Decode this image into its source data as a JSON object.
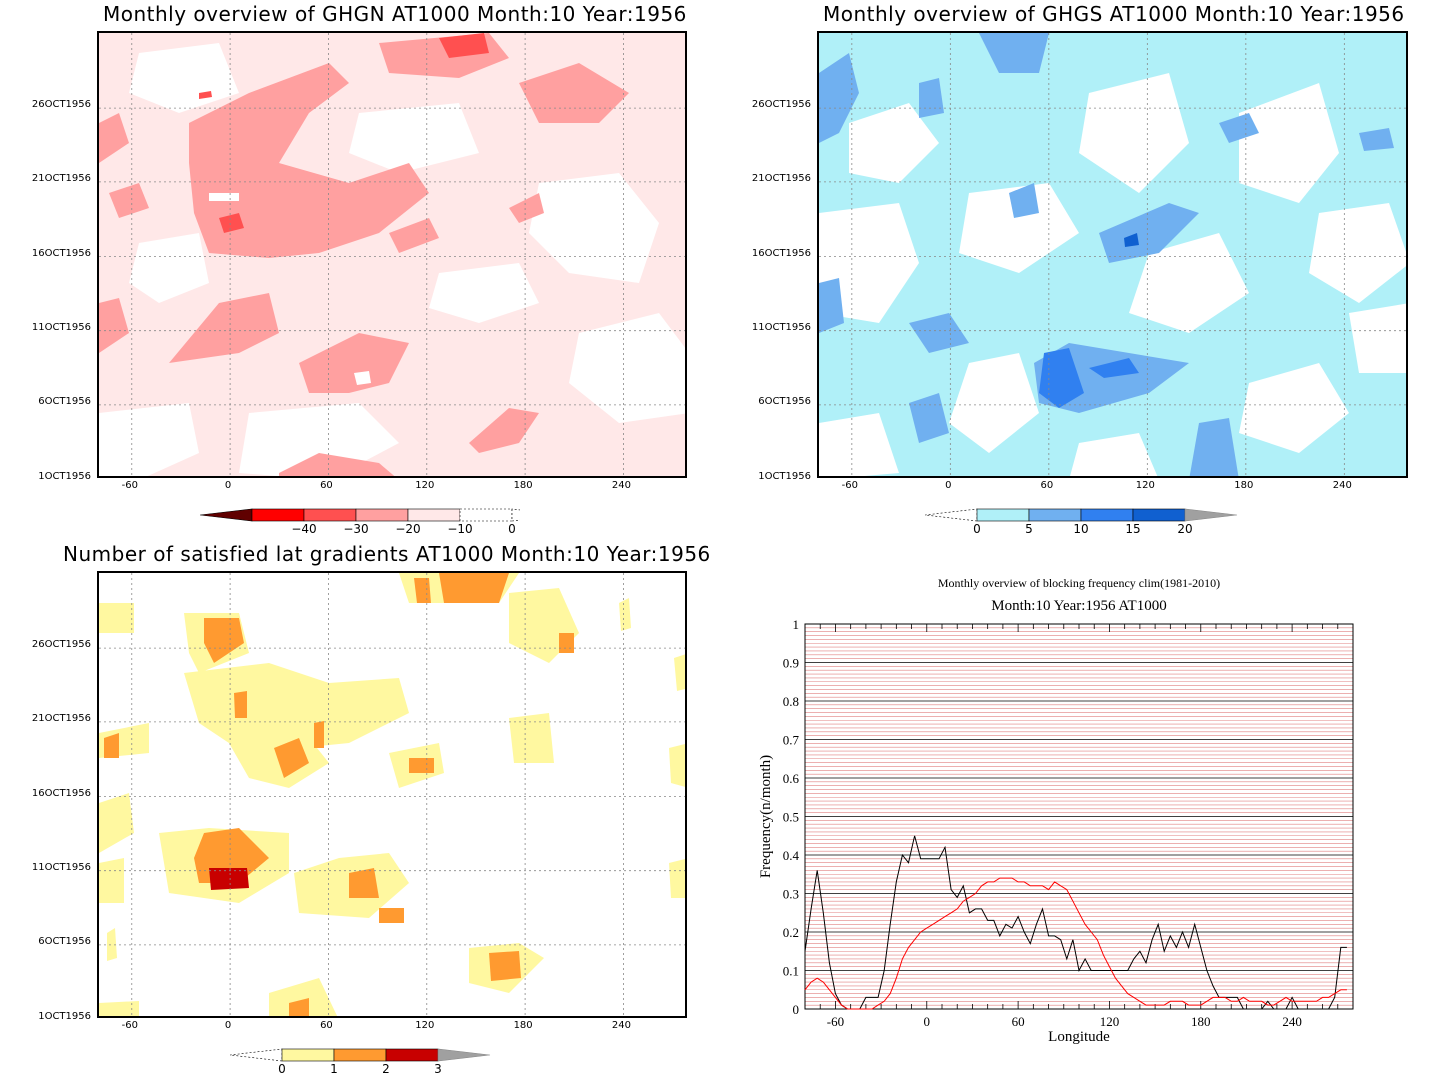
{
  "panels": {
    "ghgn": {
      "title": "Monthly overview of GHGN AT1000 Month:10 Year:1956",
      "colorbar": {
        "labels": [
          "−40",
          "−30",
          "−20",
          "−10",
          "0"
        ],
        "colors": [
          "#600000",
          "#ff0000",
          "#ff5050",
          "#ffa0a0",
          "#ffe8e8"
        ]
      }
    },
    "ghgs": {
      "title": "Monthly overview of GHGS AT1000 Month:10 Year:1956",
      "colorbar": {
        "labels": [
          "0",
          "5",
          "10",
          "15",
          "20"
        ],
        "colors": [
          "#b0f0f8",
          "#70b0f0",
          "#3080f0",
          "#1060d0",
          "#a0a0a0"
        ]
      }
    },
    "lat": {
      "title": "Number of satisfied lat gradients AT1000 Month:10 Year:1956",
      "colorbar": {
        "labels": [
          "0",
          "1",
          "2",
          "3"
        ],
        "colors": [
          "#fff8a0",
          "#ff9a30",
          "#c80000",
          "#a0a0a0"
        ]
      }
    },
    "freq": {
      "title": "Monthly overview of blocking frequency clim(1981-2010)",
      "subtitle": "Month:10 Year:1956  AT1000"
    }
  },
  "map_axes": {
    "y_ticks": [
      "26OCT1956",
      "21OCT1956",
      "16OCT1956",
      "11OCT1956",
      "6OCT1956",
      "1OCT1956"
    ],
    "x_ticks": [
      "-60",
      "0",
      "60",
      "120",
      "180",
      "240"
    ]
  },
  "chart_data": {
    "type": "line",
    "title": "Monthly overview of blocking frequency clim(1981-2010)",
    "subtitle": "Month:10 Year:1956  AT1000",
    "xlabel": "Longitude",
    "ylabel": "Frequency(n/month)",
    "xlim": [
      -80,
      280
    ],
    "ylim": [
      0,
      1
    ],
    "x_ticks": [
      -60,
      0,
      60,
      120,
      180,
      240
    ],
    "y_ticks": [
      0,
      0.1,
      0.2,
      0.3,
      0.4,
      0.5,
      0.6,
      0.7,
      0.8,
      0.9,
      1
    ],
    "y_tick_labels": [
      "0",
      "0.1",
      "0.2",
      "0.3",
      "0.4",
      "0.5",
      "0.6",
      "0.7",
      "0.8",
      "0.9",
      "1"
    ],
    "x_tick_labels": [
      "-60",
      "0",
      "60",
      "120",
      "180",
      "240"
    ],
    "series": [
      {
        "color": "#000000",
        "x": [
          -80,
          -76,
          -72,
          -68,
          -64,
          -60,
          -56,
          -52,
          -48,
          -44,
          -40,
          -36,
          -32,
          -28,
          -24,
          -20,
          -16,
          -12,
          -8,
          -4,
          0,
          4,
          8,
          12,
          16,
          20,
          24,
          28,
          32,
          36,
          40,
          44,
          48,
          52,
          56,
          60,
          64,
          68,
          72,
          76,
          80,
          84,
          88,
          92,
          96,
          100,
          104,
          108,
          112,
          116,
          120,
          124,
          128,
          132,
          136,
          140,
          144,
          148,
          152,
          156,
          160,
          164,
          168,
          172,
          176,
          180,
          184,
          188,
          192,
          196,
          200,
          204,
          208,
          212,
          216,
          220,
          224,
          228,
          232,
          236,
          240,
          244,
          248,
          252,
          256,
          260,
          264,
          268,
          272,
          276
        ],
        "y": [
          0.15,
          0.26,
          0.36,
          0.25,
          0.12,
          0.04,
          0.01,
          0.0,
          0.0,
          0.0,
          0.03,
          0.03,
          0.03,
          0.1,
          0.22,
          0.33,
          0.4,
          0.38,
          0.45,
          0.39,
          0.39,
          0.39,
          0.39,
          0.42,
          0.31,
          0.29,
          0.32,
          0.25,
          0.26,
          0.26,
          0.23,
          0.23,
          0.19,
          0.22,
          0.21,
          0.24,
          0.2,
          0.17,
          0.22,
          0.26,
          0.19,
          0.19,
          0.18,
          0.13,
          0.18,
          0.1,
          0.13,
          0.1,
          0.1,
          0.1,
          0.1,
          0.1,
          0.1,
          0.1,
          0.13,
          0.15,
          0.12,
          0.18,
          0.22,
          0.15,
          0.19,
          0.16,
          0.2,
          0.16,
          0.22,
          0.16,
          0.1,
          0.06,
          0.03,
          0.03,
          0.03,
          0.03,
          0.0,
          0.0,
          0.0,
          0.0,
          0.02,
          0.0,
          0.0,
          0.0,
          0.03,
          0.0,
          0.0,
          0.0,
          0.0,
          0.0,
          0.0,
          0.03,
          0.16,
          0.16
        ]
      },
      {
        "color": "#ff0000",
        "x": [
          -80,
          -76,
          -72,
          -68,
          -64,
          -60,
          -56,
          -52,
          -48,
          -44,
          -40,
          -36,
          -32,
          -28,
          -24,
          -20,
          -16,
          -12,
          -8,
          -4,
          0,
          4,
          8,
          12,
          16,
          20,
          24,
          28,
          32,
          36,
          40,
          44,
          48,
          52,
          56,
          60,
          64,
          68,
          72,
          76,
          80,
          84,
          88,
          92,
          96,
          100,
          104,
          108,
          112,
          116,
          120,
          124,
          128,
          132,
          136,
          140,
          144,
          148,
          152,
          156,
          160,
          164,
          168,
          172,
          176,
          180,
          184,
          188,
          192,
          196,
          200,
          204,
          208,
          212,
          216,
          220,
          224,
          228,
          232,
          236,
          240,
          244,
          248,
          252,
          256,
          260,
          264,
          268,
          272,
          276
        ],
        "y": [
          0.05,
          0.07,
          0.08,
          0.07,
          0.05,
          0.03,
          0.01,
          0.0,
          0.0,
          0.0,
          0.0,
          0.0,
          0.01,
          0.02,
          0.04,
          0.08,
          0.13,
          0.16,
          0.18,
          0.2,
          0.21,
          0.22,
          0.23,
          0.24,
          0.25,
          0.26,
          0.28,
          0.29,
          0.3,
          0.32,
          0.33,
          0.33,
          0.34,
          0.34,
          0.34,
          0.33,
          0.33,
          0.32,
          0.32,
          0.32,
          0.31,
          0.33,
          0.32,
          0.31,
          0.28,
          0.25,
          0.22,
          0.2,
          0.18,
          0.14,
          0.11,
          0.08,
          0.06,
          0.04,
          0.03,
          0.02,
          0.01,
          0.01,
          0.01,
          0.01,
          0.02,
          0.02,
          0.02,
          0.01,
          0.01,
          0.01,
          0.02,
          0.03,
          0.03,
          0.03,
          0.02,
          0.02,
          0.03,
          0.02,
          0.02,
          0.02,
          0.01,
          0.01,
          0.02,
          0.03,
          0.02,
          0.02,
          0.02,
          0.02,
          0.02,
          0.03,
          0.03,
          0.04,
          0.05,
          0.05
        ]
      }
    ]
  }
}
